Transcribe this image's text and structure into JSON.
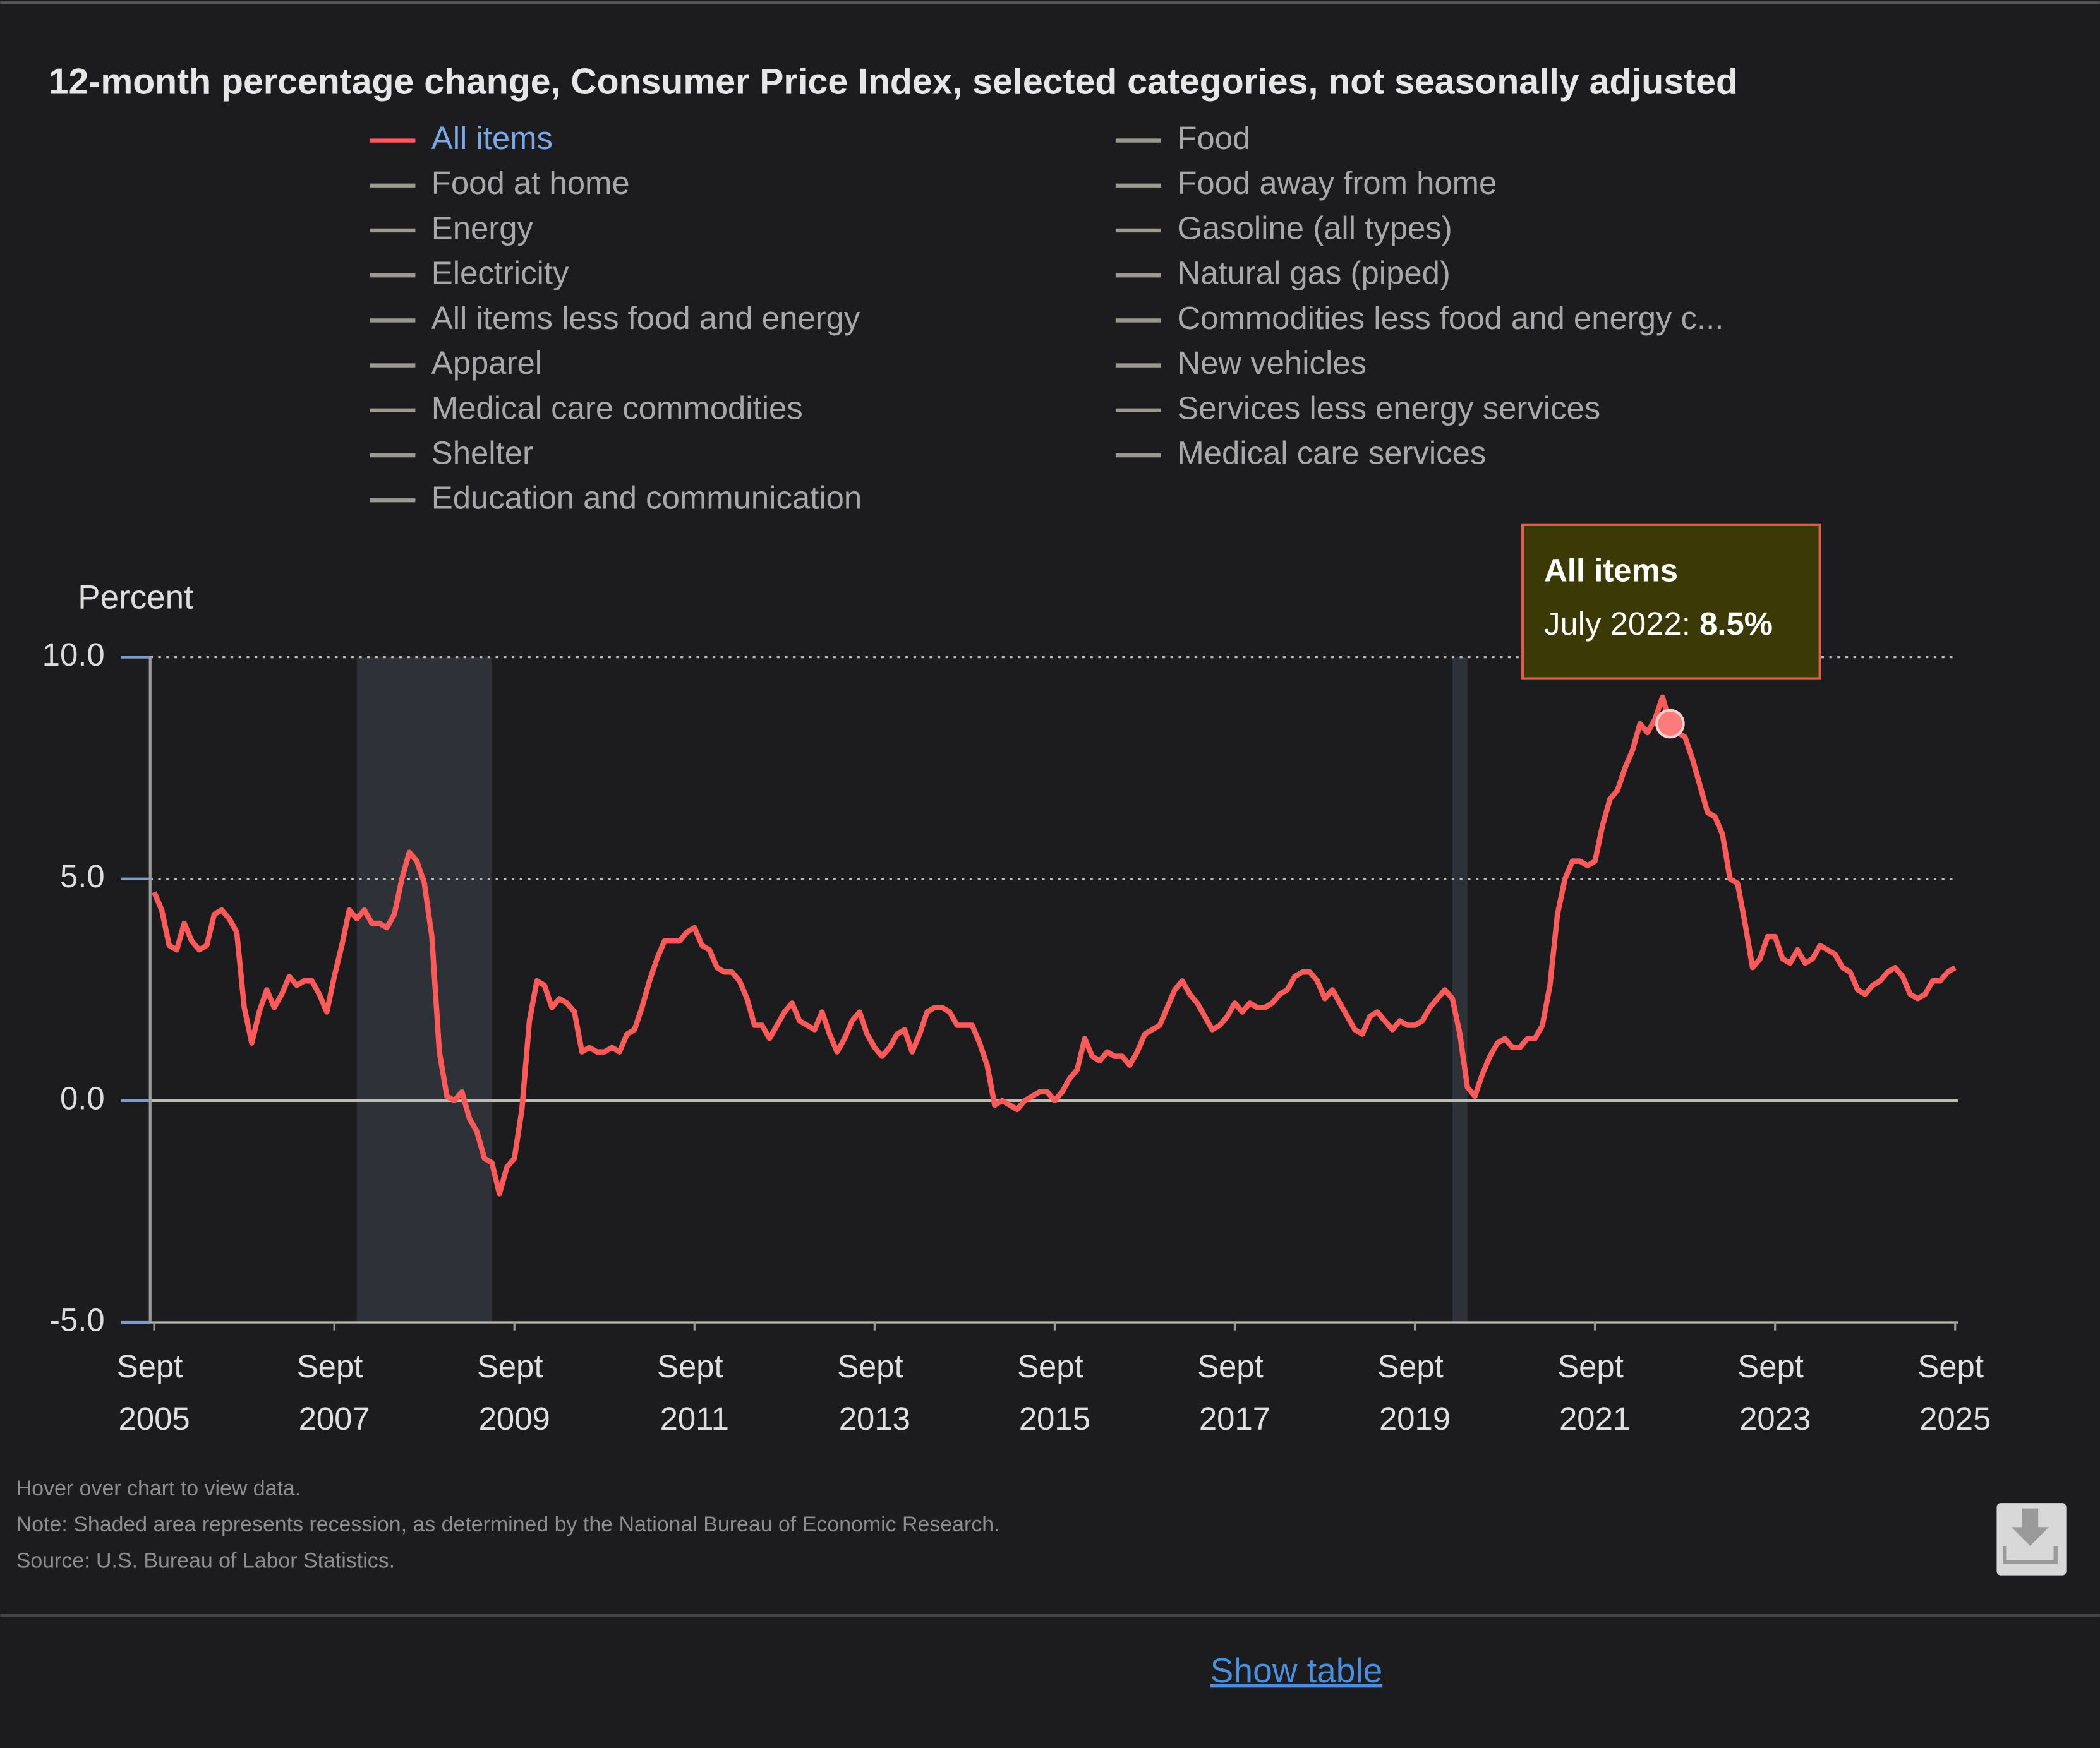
{
  "chart_data": {
    "type": "line",
    "title": "12-month percentage change, Consumer Price Index, selected categories, not seasonally adjusted",
    "y_label": "Percent",
    "ylim": [
      -5,
      10
    ],
    "yticks": [
      {
        "value": -5,
        "label": "-5.0"
      },
      {
        "value": 0,
        "label": "0.0"
      },
      {
        "value": 5,
        "label": "5.0"
      },
      {
        "value": 10,
        "label": "10.0"
      }
    ],
    "xticks": [
      {
        "value": "2005-09",
        "label": "Sept 2005"
      },
      {
        "value": "2007-09",
        "label": "Sept 2007"
      },
      {
        "value": "2009-09",
        "label": "Sept 2009"
      },
      {
        "value": "2011-09",
        "label": "Sept 2011"
      },
      {
        "value": "2013-09",
        "label": "Sept 2013"
      },
      {
        "value": "2015-09",
        "label": "Sept 2015"
      },
      {
        "value": "2017-09",
        "label": "Sept 2017"
      },
      {
        "value": "2019-09",
        "label": "Sept 2019"
      },
      {
        "value": "2021-09",
        "label": "Sept 2021"
      },
      {
        "value": "2023-09",
        "label": "Sept 2023"
      },
      {
        "value": "2025-09",
        "label": "Sept 2025"
      }
    ],
    "grid": true,
    "recessions": [
      {
        "start": "2007-12",
        "end": "2009-06"
      },
      {
        "start": "2020-02",
        "end": "2020-04"
      }
    ],
    "x": [
      "2005-09",
      "2005-10",
      "2005-11",
      "2005-12",
      "2006-01",
      "2006-02",
      "2006-03",
      "2006-04",
      "2006-05",
      "2006-06",
      "2006-07",
      "2006-08",
      "2006-09",
      "2006-10",
      "2006-11",
      "2006-12",
      "2007-01",
      "2007-02",
      "2007-03",
      "2007-04",
      "2007-05",
      "2007-06",
      "2007-07",
      "2007-08",
      "2007-09",
      "2007-10",
      "2007-11",
      "2007-12",
      "2008-01",
      "2008-02",
      "2008-03",
      "2008-04",
      "2008-05",
      "2008-06",
      "2008-07",
      "2008-08",
      "2008-09",
      "2008-10",
      "2008-11",
      "2008-12",
      "2009-01",
      "2009-02",
      "2009-03",
      "2009-04",
      "2009-05",
      "2009-06",
      "2009-07",
      "2009-08",
      "2009-09",
      "2009-10",
      "2009-11",
      "2009-12",
      "2010-01",
      "2010-02",
      "2010-03",
      "2010-04",
      "2010-05",
      "2010-06",
      "2010-07",
      "2010-08",
      "2010-09",
      "2010-10",
      "2010-11",
      "2010-12",
      "2011-01",
      "2011-02",
      "2011-03",
      "2011-04",
      "2011-05",
      "2011-06",
      "2011-07",
      "2011-08",
      "2011-09",
      "2011-10",
      "2011-11",
      "2011-12",
      "2012-01",
      "2012-02",
      "2012-03",
      "2012-04",
      "2012-05",
      "2012-06",
      "2012-07",
      "2012-08",
      "2012-09",
      "2012-10",
      "2012-11",
      "2012-12",
      "2013-01",
      "2013-02",
      "2013-03",
      "2013-04",
      "2013-05",
      "2013-06",
      "2013-07",
      "2013-08",
      "2013-09",
      "2013-10",
      "2013-11",
      "2013-12",
      "2014-01",
      "2014-02",
      "2014-03",
      "2014-04",
      "2014-05",
      "2014-06",
      "2014-07",
      "2014-08",
      "2014-09",
      "2014-10",
      "2014-11",
      "2014-12",
      "2015-01",
      "2015-02",
      "2015-03",
      "2015-04",
      "2015-05",
      "2015-06",
      "2015-07",
      "2015-08",
      "2015-09",
      "2015-10",
      "2015-11",
      "2015-12",
      "2016-01",
      "2016-02",
      "2016-03",
      "2016-04",
      "2016-05",
      "2016-06",
      "2016-07",
      "2016-08",
      "2016-09",
      "2016-10",
      "2016-11",
      "2016-12",
      "2017-01",
      "2017-02",
      "2017-03",
      "2017-04",
      "2017-05",
      "2017-06",
      "2017-07",
      "2017-08",
      "2017-09",
      "2017-10",
      "2017-11",
      "2017-12",
      "2018-01",
      "2018-02",
      "2018-03",
      "2018-04",
      "2018-05",
      "2018-06",
      "2018-07",
      "2018-08",
      "2018-09",
      "2018-10",
      "2018-11",
      "2018-12",
      "2019-01",
      "2019-02",
      "2019-03",
      "2019-04",
      "2019-05",
      "2019-06",
      "2019-07",
      "2019-08",
      "2019-09",
      "2019-10",
      "2019-11",
      "2019-12",
      "2020-01",
      "2020-02",
      "2020-03",
      "2020-04",
      "2020-05",
      "2020-06",
      "2020-07",
      "2020-08",
      "2020-09",
      "2020-10",
      "2020-11",
      "2020-12",
      "2021-01",
      "2021-02",
      "2021-03",
      "2021-04",
      "2021-05",
      "2021-06",
      "2021-07",
      "2021-08",
      "2021-09",
      "2021-10",
      "2021-11",
      "2021-12",
      "2022-01",
      "2022-02",
      "2022-03",
      "2022-04",
      "2022-05",
      "2022-06",
      "2022-07",
      "2022-08",
      "2022-09",
      "2022-10",
      "2022-11",
      "2022-12",
      "2023-01",
      "2023-02",
      "2023-03",
      "2023-04",
      "2023-05",
      "2023-06",
      "2023-07",
      "2023-08",
      "2023-09",
      "2023-10",
      "2023-11",
      "2023-12",
      "2024-01",
      "2024-02",
      "2024-03",
      "2024-04",
      "2024-05",
      "2024-06",
      "2024-07",
      "2024-08",
      "2024-09",
      "2024-10",
      "2024-11",
      "2024-12",
      "2025-01",
      "2025-02",
      "2025-03",
      "2025-04",
      "2025-05",
      "2025-06",
      "2025-07",
      "2025-08",
      "2025-09"
    ],
    "series": [
      {
        "name": "All items",
        "color": "#ff5a5a",
        "values": [
          4.7,
          4.3,
          3.5,
          3.4,
          4.0,
          3.6,
          3.4,
          3.5,
          4.2,
          4.3,
          4.1,
          3.8,
          2.1,
          1.3,
          2.0,
          2.5,
          2.1,
          2.4,
          2.8,
          2.6,
          2.7,
          2.7,
          2.4,
          2.0,
          2.8,
          3.5,
          4.3,
          4.1,
          4.3,
          4.0,
          4.0,
          3.9,
          4.2,
          5.0,
          5.6,
          5.4,
          4.9,
          3.7,
          1.1,
          0.1,
          0.0,
          0.2,
          -0.4,
          -0.7,
          -1.3,
          -1.4,
          -2.1,
          -1.5,
          -1.3,
          -0.2,
          1.8,
          2.7,
          2.6,
          2.1,
          2.3,
          2.2,
          2.0,
          1.1,
          1.2,
          1.1,
          1.1,
          1.2,
          1.1,
          1.5,
          1.6,
          2.1,
          2.7,
          3.2,
          3.6,
          3.6,
          3.6,
          3.8,
          3.9,
          3.5,
          3.4,
          3.0,
          2.9,
          2.9,
          2.7,
          2.3,
          1.7,
          1.7,
          1.4,
          1.7,
          2.0,
          2.2,
          1.8,
          1.7,
          1.6,
          2.0,
          1.5,
          1.1,
          1.4,
          1.8,
          2.0,
          1.5,
          1.2,
          1.0,
          1.2,
          1.5,
          1.6,
          1.1,
          1.5,
          2.0,
          2.1,
          2.1,
          2.0,
          1.7,
          1.7,
          1.7,
          1.3,
          0.8,
          -0.1,
          0.0,
          -0.1,
          -0.2,
          0.0,
          0.1,
          0.2,
          0.2,
          0.0,
          0.2,
          0.5,
          0.7,
          1.4,
          1.0,
          0.9,
          1.1,
          1.0,
          1.0,
          0.8,
          1.1,
          1.5,
          1.6,
          1.7,
          2.1,
          2.5,
          2.7,
          2.4,
          2.2,
          1.9,
          1.6,
          1.7,
          1.9,
          2.2,
          2.0,
          2.2,
          2.1,
          2.1,
          2.2,
          2.4,
          2.5,
          2.8,
          2.9,
          2.9,
          2.7,
          2.3,
          2.5,
          2.2,
          1.9,
          1.6,
          1.5,
          1.9,
          2.0,
          1.8,
          1.6,
          1.8,
          1.7,
          1.7,
          1.8,
          2.1,
          2.3,
          2.5,
          2.3,
          1.5,
          0.3,
          0.1,
          0.6,
          1.0,
          1.3,
          1.4,
          1.2,
          1.2,
          1.4,
          1.4,
          1.7,
          2.6,
          4.2,
          5.0,
          5.4,
          5.4,
          5.3,
          5.4,
          6.2,
          6.8,
          7.0,
          7.5,
          7.9,
          8.5,
          8.3,
          8.6,
          9.1,
          8.5,
          8.3,
          8.2,
          7.7,
          7.1,
          6.5,
          6.4,
          6.0,
          5.0,
          4.9,
          4.0,
          3.0,
          3.2,
          3.7,
          3.7,
          3.2,
          3.1,
          3.4,
          3.1,
          3.2,
          3.5,
          3.4,
          3.3,
          3.0,
          2.9,
          2.5,
          2.4,
          2.6,
          2.7,
          2.9,
          3.0,
          2.8,
          2.4,
          2.3,
          2.4,
          2.7,
          2.7,
          2.9,
          3.0
        ]
      }
    ],
    "legend_inactive": [
      "Food at home",
      "Energy",
      "Electricity",
      "All items less food and energy",
      "Apparel",
      "Medical care commodities",
      "Shelter",
      "Education and communication",
      "Food",
      "Food away from home",
      "Gasoline (all types)",
      "Natural gas (piped)",
      "Commodities less food and energy c...",
      "New vehicles",
      "Services less energy services",
      "Medical care services"
    ],
    "tooltip": {
      "title": "All items",
      "x": "2022-07",
      "date_label": "July 2022:",
      "value": 8.5,
      "value_label": "8.5%"
    },
    "notes": [
      "Hover over chart to view data.",
      "Note: Shaded area represents recession, as determined by the National Bureau of Economic Research.",
      "Source: U.S. Bureau of Labor Statistics."
    ],
    "link": "Show table"
  }
}
